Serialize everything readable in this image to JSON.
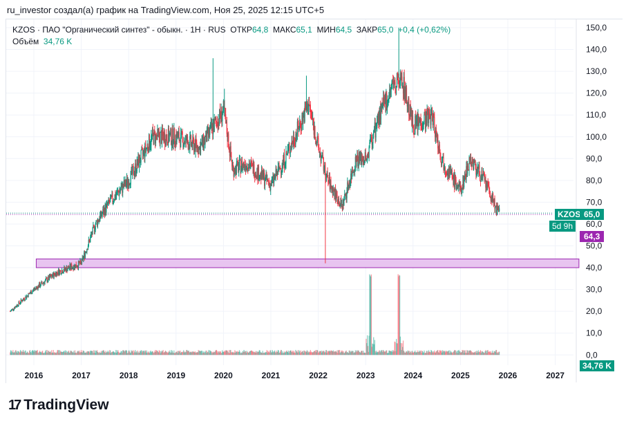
{
  "credit": "ru_investor создал(а) график на TradingView.com, Ноя 25, 2025 12:15 UTC+5",
  "legend": {
    "symbol": "KZOS · ПАО \"Органический синтез\" - обыкн. · 1H · RUS",
    "open_label": "ОТКР",
    "open": "64,8",
    "high_label": "МАКС",
    "high": "65,1",
    "low_label": "МИН",
    "low": "64,5",
    "close_label": "ЗАКР",
    "close": "65,0",
    "change": "+0,4 (+0,62%)",
    "volume_label": "Объём",
    "volume": "34,76 K"
  },
  "tags": {
    "symbol": "KZOS",
    "price": "65,0",
    "countdown": "5d 9h",
    "level": "64,3",
    "volume": "34,76 K"
  },
  "logo": "TradingView",
  "colors": {
    "up": "#089981",
    "down": "#f23645",
    "zone": "#e8c4f0",
    "zone_border": "#9c27b0",
    "level": "#9c27b0"
  },
  "chart_data": {
    "type": "candlestick",
    "price_ticks": [
      "150,0",
      "140,0",
      "130,0",
      "120,0",
      "110,0",
      "100,0",
      "90,0",
      "80,0",
      "70,0",
      "60,0",
      "50,0",
      "40,0",
      "30,0",
      "20,0",
      "10,0",
      "0,0"
    ],
    "price_tick_values": [
      150,
      140,
      130,
      120,
      110,
      100,
      90,
      80,
      70,
      60,
      50,
      40,
      30,
      20,
      10,
      0
    ],
    "year_ticks": [
      "2016",
      "2017",
      "2018",
      "2019",
      "2020",
      "2021",
      "2022",
      "2023",
      "2024",
      "2025",
      "2026",
      "2027"
    ],
    "price_path": [
      [
        2015.5,
        20
      ],
      [
        2016,
        30
      ],
      [
        2016.5,
        38
      ],
      [
        2017,
        42
      ],
      [
        2017.3,
        60
      ],
      [
        2017.6,
        70
      ],
      [
        2018,
        80
      ],
      [
        2018.5,
        100
      ],
      [
        2019,
        100
      ],
      [
        2019.5,
        95
      ],
      [
        2019.8,
        105
      ],
      [
        2020,
        112
      ],
      [
        2020.2,
        85
      ],
      [
        2020.5,
        88
      ],
      [
        2021,
        78
      ],
      [
        2021.3,
        90
      ],
      [
        2021.5,
        100
      ],
      [
        2021.8,
        115
      ],
      [
        2022,
        95
      ],
      [
        2022.2,
        80
      ],
      [
        2022.5,
        68
      ],
      [
        2022.8,
        90
      ],
      [
        2023,
        90
      ],
      [
        2023.3,
        110
      ],
      [
        2023.6,
        125
      ],
      [
        2023.75,
        128
      ],
      [
        2024,
        105
      ],
      [
        2024.4,
        110
      ],
      [
        2024.6,
        90
      ],
      [
        2025,
        75
      ],
      [
        2025.2,
        90
      ],
      [
        2025.5,
        80
      ],
      [
        2025.8,
        65
      ]
    ],
    "spikes": [
      [
        2019.78,
        136
      ],
      [
        2020.02,
        122
      ],
      [
        2021.75,
        128
      ],
      [
        2022.15,
        42
      ],
      [
        2023.7,
        150
      ]
    ],
    "support_zone": {
      "from": 2016.05,
      "to": 2027.5,
      "low": 40,
      "high": 44
    },
    "last_price": 65.0,
    "volume_peaks": [
      [
        2023.1,
        35
      ],
      [
        2023.7,
        35
      ]
    ]
  }
}
